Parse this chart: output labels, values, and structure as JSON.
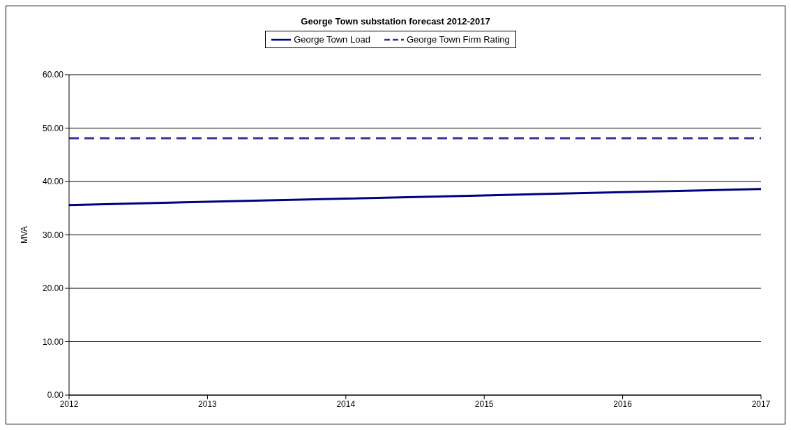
{
  "chart_data": {
    "type": "line",
    "title": "George Town substation forecast 2012-2017",
    "ylabel": "MVA",
    "categories": [
      "2012",
      "2013",
      "2014",
      "2015",
      "2016",
      "2017"
    ],
    "series": [
      {
        "name": "George Town Load",
        "color": "#000080",
        "line_style": "solid",
        "values": [
          35.6,
          36.2,
          36.8,
          37.4,
          38.0,
          38.6
        ]
      },
      {
        "name": "George Town Firm Rating",
        "color": "#333399",
        "line_style": "dashed",
        "values": [
          48.1,
          48.1,
          48.1,
          48.1,
          48.1,
          48.1
        ]
      }
    ],
    "ylim": [
      0,
      60
    ],
    "yticks": [
      {
        "value": 0,
        "label": "0.00"
      },
      {
        "value": 10,
        "label": "10.00"
      },
      {
        "value": 20,
        "label": "20.00"
      },
      {
        "value": 30,
        "label": "30.00"
      },
      {
        "value": 40,
        "label": "40.00"
      },
      {
        "value": 50,
        "label": "50.00"
      },
      {
        "value": 60,
        "label": "60.00"
      }
    ],
    "grid": "y",
    "legend": "top",
    "marker": "none"
  }
}
